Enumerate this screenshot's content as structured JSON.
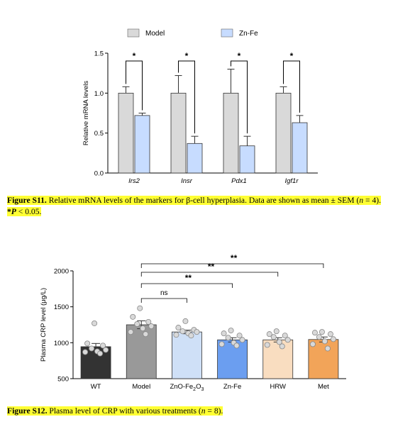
{
  "figures": [
    {
      "id": "S11",
      "chart_data": {
        "type": "bar",
        "ylabel": "Relative mRNA levels",
        "ylim": [
          0,
          1.5
        ],
        "yticks": [
          "0.0",
          "0.5",
          "1.0",
          "1.5"
        ],
        "categories": [
          "Irs2",
          "Insr",
          "Pdx1",
          "Igf1r"
        ],
        "series": [
          {
            "name": "Model",
            "color": "#d9d9d9",
            "values": [
              1.0,
              1.0,
              1.0,
              1.0
            ],
            "errors": [
              0.08,
              0.22,
              0.3,
              0.08
            ]
          },
          {
            "name": "Zn-Fe",
            "color": "#c7dcff",
            "values": [
              0.72,
              0.37,
              0.34,
              0.63
            ],
            "errors": [
              0.03,
              0.09,
              0.12,
              0.09
            ]
          }
        ],
        "significance": [
          "*",
          "*",
          "*",
          "*"
        ],
        "legend_position": "top"
      },
      "caption": {
        "label": "Figure S11.",
        "text": " Relative mRNA levels of the markers for β-cell hyperplasia. Data are shown as mean ± SEM (",
        "n_var": "n",
        "n_val": " = 4). ",
        "p_star": "*",
        "p_var": "P",
        "p_val": " < 0.05."
      }
    },
    {
      "id": "S12",
      "chart_data": {
        "type": "bar",
        "ylabel": "Plasma CRP level (μg/L)",
        "ylim": [
          500,
          2000
        ],
        "yticks": [
          "500",
          "1000",
          "1500",
          "2000"
        ],
        "categories": [
          "WT",
          "Model",
          "ZnO-Fe2O3",
          "Zn-Fe",
          "HRW",
          "Met"
        ],
        "colors": [
          "#333333",
          "#999999",
          "#cfe0f7",
          "#6b9ef0",
          "#f9ddc0",
          "#f2a459"
        ],
        "values": [
          945,
          1250,
          1150,
          1040,
          1040,
          1045
        ],
        "errors": [
          45,
          55,
          25,
          30,
          30,
          35
        ],
        "points": [
          [
            1270,
            990,
            960,
            920,
            900,
            880,
            870,
            850
          ],
          [
            1480,
            1360,
            1290,
            1260,
            1230,
            1200,
            1150,
            1120
          ],
          [
            1300,
            1210,
            1180,
            1160,
            1150,
            1130,
            1110,
            1100
          ],
          [
            1170,
            1130,
            1100,
            1070,
            1040,
            1000,
            980,
            960
          ],
          [
            1160,
            1120,
            1100,
            1080,
            1040,
            1010,
            970,
            950
          ],
          [
            1150,
            1140,
            1120,
            1080,
            1050,
            1020,
            980,
            920
          ]
        ],
        "comparisons": [
          {
            "to": "ZnO-Fe2O3",
            "label": "ns"
          },
          {
            "to": "Zn-Fe",
            "label": "**"
          },
          {
            "to": "HRW",
            "label": "**"
          },
          {
            "to": "Met",
            "label": "**"
          }
        ]
      },
      "caption": {
        "label": "Figure S12.",
        "text": " Plasma level of CRP with various treatments (",
        "n_var": "n",
        "n_val": " = 8)."
      }
    }
  ]
}
